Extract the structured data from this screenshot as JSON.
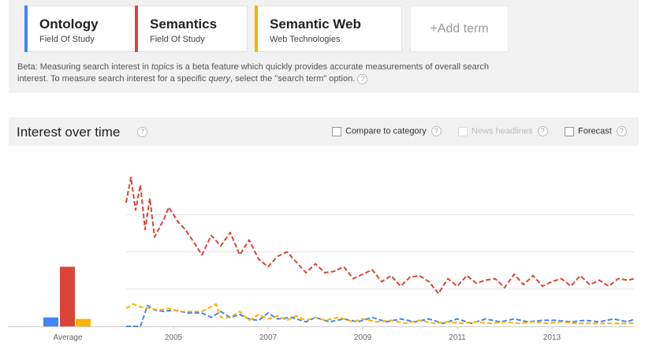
{
  "terms": [
    {
      "name": "Ontology",
      "category": "Field Of Study",
      "color": "#4285f4"
    },
    {
      "name": "Semantics",
      "category": "Field Of Study",
      "color": "#db4437"
    },
    {
      "name": "Semantic Web",
      "category": "Web Technologies",
      "color": "#f4b400"
    }
  ],
  "add_term_label": "+Add term",
  "beta": {
    "prefix": "Beta: Measuring search interest in ",
    "topics_word": "topics",
    "middle": " is a beta feature which quickly provides accurate measurements of overall search interest. To measure search interest for a specific ",
    "query_word": "query",
    "suffix": ", select the \"search term\" option.",
    "help_glyph": "?"
  },
  "interest": {
    "title": "Interest over time",
    "help_glyph": "?",
    "options": [
      {
        "label": "Compare to category",
        "checked": false,
        "enabled": true
      },
      {
        "label": "News headlines",
        "checked": false,
        "enabled": false
      },
      {
        "label": "Forecast",
        "checked": false,
        "enabled": true
      }
    ]
  },
  "chart_data": {
    "type": "line",
    "average_label": "Average",
    "averages": {
      "Ontology": 6,
      "Semantics": 40,
      "Semantic Web": 5
    },
    "x_tick_labels": [
      "2005",
      "2007",
      "2009",
      "2011",
      "2013"
    ],
    "x_ticks": [
      2005,
      2007,
      2009,
      2011,
      2013
    ],
    "x_range": [
      2004,
      2014.75
    ],
    "ylim": [
      0,
      100
    ],
    "grid": true,
    "line_style": "dashed",
    "series": [
      {
        "name": "Semantics",
        "color": "#db4437",
        "points": [
          [
            2004.0,
            83
          ],
          [
            2004.1,
            100
          ],
          [
            2004.2,
            78
          ],
          [
            2004.3,
            95
          ],
          [
            2004.4,
            65
          ],
          [
            2004.5,
            86
          ],
          [
            2004.6,
            60
          ],
          [
            2004.8,
            72
          ],
          [
            2004.9,
            80
          ],
          [
            2005.1,
            70
          ],
          [
            2005.25,
            65
          ],
          [
            2005.4,
            58
          ],
          [
            2005.6,
            48
          ],
          [
            2005.8,
            61
          ],
          [
            2006.0,
            54
          ],
          [
            2006.2,
            63
          ],
          [
            2006.4,
            48
          ],
          [
            2006.6,
            58
          ],
          [
            2006.8,
            45
          ],
          [
            2007.0,
            40
          ],
          [
            2007.2,
            47
          ],
          [
            2007.4,
            50
          ],
          [
            2007.6,
            43
          ],
          [
            2007.8,
            36
          ],
          [
            2008.0,
            42
          ],
          [
            2008.2,
            36
          ],
          [
            2008.4,
            37
          ],
          [
            2008.6,
            40
          ],
          [
            2008.8,
            32
          ],
          [
            2009.0,
            35
          ],
          [
            2009.2,
            38
          ],
          [
            2009.4,
            30
          ],
          [
            2009.6,
            34
          ],
          [
            2009.8,
            27
          ],
          [
            2010.0,
            33
          ],
          [
            2010.2,
            34
          ],
          [
            2010.4,
            30
          ],
          [
            2010.6,
            22
          ],
          [
            2010.8,
            32
          ],
          [
            2011.0,
            27
          ],
          [
            2011.2,
            34
          ],
          [
            2011.4,
            29
          ],
          [
            2011.6,
            31
          ],
          [
            2011.8,
            32
          ],
          [
            2012.0,
            26
          ],
          [
            2012.2,
            35
          ],
          [
            2012.4,
            28
          ],
          [
            2012.6,
            34
          ],
          [
            2012.8,
            27
          ],
          [
            2013.0,
            30
          ],
          [
            2013.2,
            32
          ],
          [
            2013.4,
            27
          ],
          [
            2013.6,
            34
          ],
          [
            2013.8,
            28
          ],
          [
            2014.0,
            31
          ],
          [
            2014.2,
            27
          ],
          [
            2014.4,
            32
          ],
          [
            2014.6,
            31
          ],
          [
            2014.75,
            32
          ]
        ]
      },
      {
        "name": "Ontology",
        "color": "#4285f4",
        "points": [
          [
            2004.0,
            0
          ],
          [
            2004.3,
            0
          ],
          [
            2004.45,
            14
          ],
          [
            2004.6,
            11
          ],
          [
            2004.8,
            10
          ],
          [
            2005.0,
            11
          ],
          [
            2005.3,
            9
          ],
          [
            2005.6,
            9
          ],
          [
            2005.8,
            6
          ],
          [
            2006.0,
            10
          ],
          [
            2006.2,
            6
          ],
          [
            2006.4,
            8
          ],
          [
            2006.6,
            5
          ],
          [
            2006.8,
            4
          ],
          [
            2007.0,
            9
          ],
          [
            2007.2,
            5
          ],
          [
            2007.5,
            6
          ],
          [
            2007.8,
            3
          ],
          [
            2008.0,
            6
          ],
          [
            2008.3,
            3
          ],
          [
            2008.6,
            5
          ],
          [
            2008.9,
            3
          ],
          [
            2009.2,
            6
          ],
          [
            2009.5,
            3
          ],
          [
            2009.8,
            5
          ],
          [
            2010.1,
            3
          ],
          [
            2010.4,
            5
          ],
          [
            2010.7,
            2
          ],
          [
            2011.0,
            5
          ],
          [
            2011.3,
            2
          ],
          [
            2011.6,
            5
          ],
          [
            2011.9,
            3
          ],
          [
            2012.2,
            5
          ],
          [
            2012.5,
            3
          ],
          [
            2012.8,
            4
          ],
          [
            2013.1,
            4
          ],
          [
            2013.4,
            3
          ],
          [
            2013.7,
            4
          ],
          [
            2014.0,
            3
          ],
          [
            2014.3,
            5
          ],
          [
            2014.6,
            3
          ],
          [
            2014.75,
            5
          ]
        ]
      },
      {
        "name": "Semantic Web",
        "color": "#f4b400",
        "points": [
          [
            2004.0,
            12
          ],
          [
            2004.15,
            15
          ],
          [
            2004.3,
            13
          ],
          [
            2004.5,
            12
          ],
          [
            2004.7,
            11
          ],
          [
            2004.9,
            12
          ],
          [
            2005.1,
            10
          ],
          [
            2005.3,
            10
          ],
          [
            2005.6,
            10
          ],
          [
            2005.9,
            15
          ],
          [
            2006.0,
            6
          ],
          [
            2006.2,
            6
          ],
          [
            2006.4,
            10
          ],
          [
            2006.6,
            4
          ],
          [
            2006.8,
            8
          ],
          [
            2007.0,
            5
          ],
          [
            2007.2,
            7
          ],
          [
            2007.4,
            4
          ],
          [
            2007.6,
            7
          ],
          [
            2007.8,
            4
          ],
          [
            2008.0,
            6
          ],
          [
            2008.2,
            4
          ],
          [
            2008.5,
            6
          ],
          [
            2008.8,
            3
          ],
          [
            2009.0,
            5
          ],
          [
            2009.3,
            3
          ],
          [
            2009.6,
            4
          ],
          [
            2009.9,
            2
          ],
          [
            2010.2,
            4
          ],
          [
            2010.5,
            2
          ],
          [
            2010.8,
            3
          ],
          [
            2011.1,
            2
          ],
          [
            2011.4,
            3
          ],
          [
            2011.7,
            2
          ],
          [
            2012.0,
            3
          ],
          [
            2012.3,
            2
          ],
          [
            2012.6,
            3
          ],
          [
            2012.9,
            2
          ],
          [
            2013.2,
            3
          ],
          [
            2013.5,
            2
          ],
          [
            2013.8,
            2
          ],
          [
            2014.1,
            2
          ],
          [
            2014.4,
            2
          ],
          [
            2014.75,
            2
          ]
        ]
      }
    ]
  }
}
